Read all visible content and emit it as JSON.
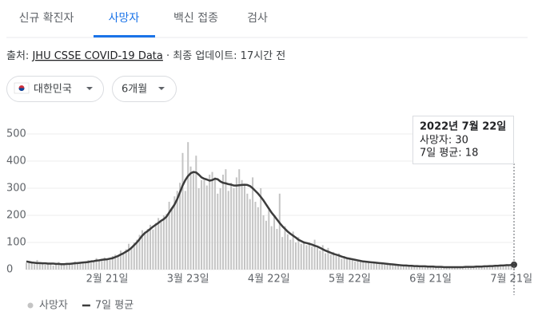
{
  "tabs": [
    "신규 확진자",
    "사망자",
    "백신 접종",
    "검사"
  ],
  "source": {
    "label": "출처:",
    "link": "JHU CSSE COVID-19 Data",
    "updated": "· 최종 업데이트: 17시간 전"
  },
  "filters": [
    "대한민국",
    "6개월"
  ],
  "chart_data": {
    "type": "combo",
    "categories": [
      null,
      null,
      null,
      null,
      null,
      null,
      null,
      null,
      null,
      null,
      null,
      null,
      null,
      null,
      null,
      null,
      null,
      null,
      null,
      null,
      null,
      null,
      null,
      null,
      null,
      null,
      null,
      null,
      null,
      null,
      "2월 21일",
      null,
      null,
      null,
      null,
      null,
      null,
      null,
      null,
      null,
      null,
      null,
      null,
      null,
      null,
      null,
      null,
      null,
      null,
      null,
      null,
      null,
      null,
      null,
      null,
      null,
      null,
      null,
      null,
      null,
      "3월 23일",
      null,
      null,
      null,
      null,
      null,
      null,
      null,
      null,
      null,
      null,
      null,
      null,
      null,
      null,
      null,
      null,
      null,
      null,
      null,
      null,
      null,
      null,
      null,
      null,
      null,
      null,
      null,
      null,
      null,
      "4월 22일",
      null,
      null,
      null,
      null,
      null,
      null,
      null,
      null,
      null,
      null,
      null,
      null,
      null,
      null,
      null,
      null,
      null,
      null,
      null,
      null,
      null,
      null,
      null,
      null,
      null,
      null,
      null,
      null,
      null,
      "5월 22일",
      null,
      null,
      null,
      null,
      null,
      null,
      null,
      null,
      null,
      null,
      null,
      null,
      null,
      null,
      null,
      null,
      null,
      null,
      null,
      null,
      null,
      null,
      null,
      null,
      null,
      null,
      null,
      null,
      null,
      "6월 21일",
      null,
      null,
      null,
      null,
      null,
      null,
      null,
      null,
      null,
      null,
      null,
      null,
      null,
      null,
      null,
      null,
      null,
      null,
      null,
      null,
      null,
      null,
      null,
      null,
      null,
      null,
      null,
      null,
      null,
      "7월 21일",
      null
    ],
    "series": [
      {
        "name": "사망자",
        "type": "bar",
        "color": "#c4c4c4",
        "values": [
          25,
          30,
          28,
          20,
          35,
          22,
          26,
          18,
          24,
          20,
          15,
          22,
          28,
          20,
          16,
          24,
          25,
          20,
          30,
          22,
          28,
          24,
          30,
          35,
          26,
          30,
          42,
          38,
          32,
          45,
          40,
          35,
          50,
          55,
          48,
          70,
          58,
          75,
          95,
          85,
          100,
          110,
          128,
          145,
          140,
          150,
          165,
          148,
          172,
          190,
          180,
          200,
          205,
          250,
          230,
          270,
          290,
          320,
          430,
          290,
          470,
          380,
          360,
          420,
          300,
          330,
          330,
          310,
          350,
          360,
          340,
          280,
          300,
          350,
          370,
          290,
          320,
          300,
          340,
          370,
          330,
          310,
          280,
          260,
          340,
          250,
          230,
          300,
          200,
          180,
          220,
          160,
          200,
          150,
          280,
          120,
          160,
          130,
          110,
          140,
          100,
          120,
          95,
          105,
          90,
          100,
          85,
          110,
          80,
          70,
          90,
          60,
          80,
          55,
          65,
          50,
          60,
          40,
          50,
          45,
          38,
          42,
          30,
          35,
          28,
          32,
          25,
          30,
          22,
          28,
          26,
          20,
          25,
          18,
          24,
          17,
          20,
          15,
          18,
          14,
          16,
          12,
          15,
          13,
          14,
          11,
          13,
          10,
          12,
          10,
          12,
          9,
          11,
          8,
          11,
          7,
          10,
          9,
          8,
          9,
          8,
          10,
          7,
          11,
          9,
          12,
          10,
          11,
          13,
          9,
          13,
          11,
          14,
          12,
          16,
          13,
          17,
          14,
          18,
          15,
          16,
          30
        ]
      },
      {
        "name": "7일 평균",
        "type": "line",
        "color": "#3c3c3c",
        "values": [
          30,
          28,
          26,
          25,
          24,
          24,
          23,
          23,
          22,
          22,
          22,
          21,
          21,
          20,
          20,
          21,
          21,
          22,
          23,
          24,
          25,
          26,
          27,
          28,
          30,
          31,
          33,
          34,
          36,
          37,
          38,
          40,
          42,
          46,
          50,
          55,
          60,
          66,
          72,
          80,
          90,
          100,
          112,
          125,
          135,
          142,
          150,
          158,
          165,
          172,
          180,
          186,
          195,
          210,
          225,
          240,
          260,
          285,
          310,
          330,
          345,
          355,
          360,
          358,
          350,
          340,
          335,
          332,
          328,
          330,
          335,
          333,
          325,
          320,
          318,
          315,
          313,
          310,
          310,
          311,
          312,
          313,
          312,
          308,
          300,
          290,
          280,
          268,
          255,
          240,
          225,
          210,
          198,
          185,
          172,
          160,
          150,
          140,
          132,
          125,
          118,
          110,
          105,
          100,
          98,
          95,
          92,
          88,
          85,
          80,
          75,
          70,
          66,
          62,
          58,
          55,
          52,
          48,
          45,
          42,
          40,
          38,
          36,
          34,
          32,
          30,
          29,
          28,
          27,
          26,
          25,
          24,
          23,
          22,
          21,
          20,
          19,
          18,
          17,
          16,
          15,
          15,
          14,
          14,
          13,
          13,
          12,
          12,
          12,
          11,
          11,
          11,
          10,
          10,
          10,
          9,
          9,
          9,
          9,
          9,
          9,
          9,
          9,
          10,
          10,
          10,
          10,
          11,
          11,
          11,
          12,
          12,
          13,
          13,
          14,
          14,
          15,
          15,
          16,
          16,
          17,
          18
        ]
      }
    ],
    "ylim": [
      0,
      500
    ],
    "yticks": [
      0,
      100,
      200,
      300,
      400,
      500
    ],
    "grid": true,
    "tooltip": {
      "date": "2022년 7월 22일",
      "lines": [
        "사망자: 30",
        "7일 평균: 18"
      ]
    }
  }
}
